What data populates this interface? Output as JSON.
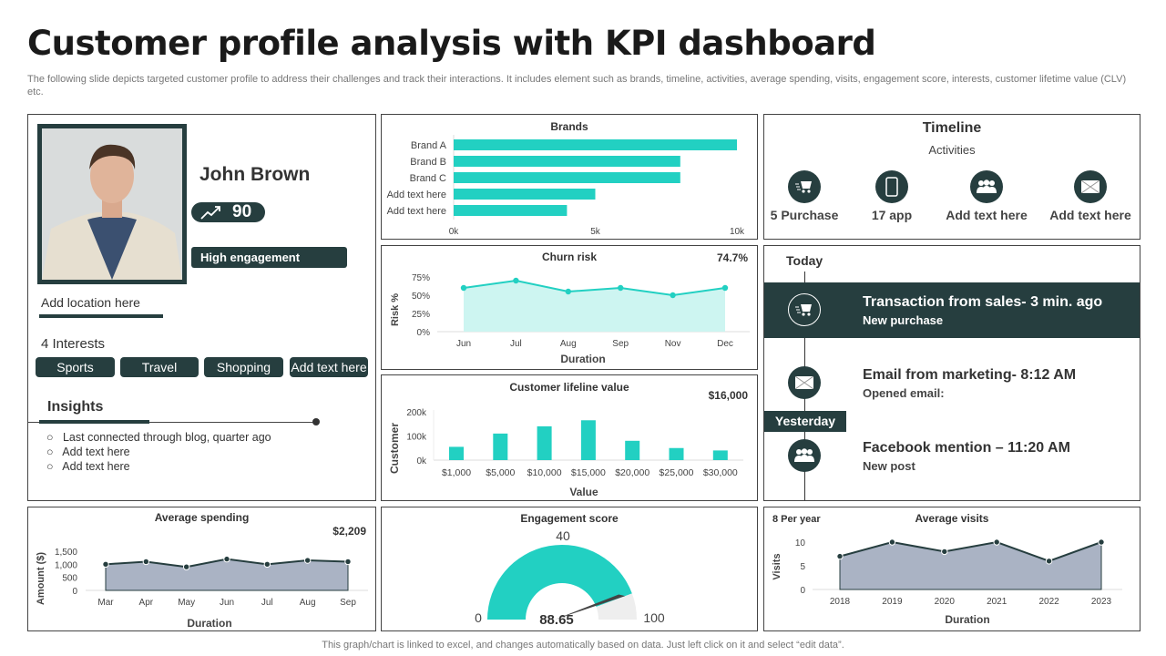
{
  "header": {
    "title": "Customer profile analysis with KPI dashboard",
    "description": "The following slide depicts targeted customer profile to address their challenges and track their interactions. It includes element such as brands, timeline, activities, average spending, visits, engagement score, interests, customer lifetime value (CLV) etc."
  },
  "profile": {
    "name": "John Brown",
    "score": "90",
    "engagement": "High engagement",
    "location": "Add location here",
    "interests_label": "4 Interests",
    "interests": [
      "Sports",
      "Travel",
      "Shopping",
      "Add text here"
    ],
    "insights_title": "Insights",
    "insights": [
      "Last connected through  blog,  quarter  ago",
      "Add text here",
      "Add text here"
    ]
  },
  "timeline": {
    "title": "Timeline",
    "subtitle": "Activities",
    "activities": [
      {
        "icon": "cart-icon",
        "label": "5 Purchase"
      },
      {
        "icon": "phone-icon",
        "label": "17 app"
      },
      {
        "icon": "group-icon",
        "label": "Add text here"
      },
      {
        "icon": "mail-icon",
        "label": "Add text here"
      }
    ]
  },
  "feed": {
    "today": "Today",
    "yesterday": "Yesterday",
    "items": [
      {
        "title": "Transaction from sales- 3 min. ago",
        "sub": "New purchase"
      },
      {
        "title": "Email from marketing- 8:12 AM",
        "sub": "Opened email:"
      },
      {
        "title": "Facebook mention – 11:20 AM",
        "sub": "New post"
      }
    ]
  },
  "colors": {
    "dark": "#263e3f",
    "teal": "#22d0c2",
    "area_gray": "#aab3c4",
    "churn_fill": "#cdf5f1"
  },
  "chart_data": [
    {
      "id": "brands",
      "type": "bar",
      "orientation": "horizontal",
      "title": "Brands",
      "categories": [
        "Brand A",
        "Brand B",
        "Brand C",
        "Add text here",
        "Add text here"
      ],
      "values": [
        10000,
        8000,
        8000,
        5000,
        4000
      ],
      "xlim": [
        0,
        10000
      ],
      "xticks": [
        "0k",
        "5k",
        "10k"
      ]
    },
    {
      "id": "churn",
      "type": "area",
      "title": "Churn risk",
      "kpi": "74.7%",
      "categories": [
        "Jun",
        "Jul",
        "Aug",
        "Sep",
        "Nov",
        "Dec"
      ],
      "values": [
        60,
        70,
        55,
        60,
        50,
        60
      ],
      "ylim": [
        0,
        75
      ],
      "yticks": [
        "0%",
        "25%",
        "50%",
        "75%"
      ],
      "xlabel": "Duration",
      "ylabel": "Risk %"
    },
    {
      "id": "clv",
      "type": "bar",
      "title": "Customer lifeline value",
      "kpi": "$16,000",
      "categories": [
        "$1,000",
        "$5,000",
        "$10,000",
        "$15,000",
        "$20,000",
        "$25,000",
        "$30,000"
      ],
      "values": [
        55000,
        110000,
        140000,
        165000,
        80000,
        50000,
        40000
      ],
      "ylim": [
        0,
        200000
      ],
      "yticks": [
        "0k",
        "100k",
        "200k"
      ],
      "xlabel": "Value",
      "ylabel": "Customer"
    },
    {
      "id": "spending",
      "type": "area",
      "title": "Average spending",
      "kpi": "$2,209",
      "categories": [
        "Mar",
        "Apr",
        "May",
        "Jun",
        "Jul",
        "Aug",
        "Sep"
      ],
      "values": [
        1000,
        1100,
        900,
        1200,
        1000,
        1150,
        1100
      ],
      "ylim": [
        0,
        1500
      ],
      "yticks": [
        "0",
        "500",
        "1,000",
        "1,500"
      ],
      "xlabel": "Duration",
      "ylabel": "Amount ($)"
    },
    {
      "id": "engagement",
      "type": "gauge",
      "title": "Engagement score",
      "value": 88.65,
      "value_label": "88.65",
      "min_label": "0",
      "max_label": "100",
      "top_label": "40",
      "range": [
        0,
        100
      ]
    },
    {
      "id": "visits",
      "type": "area",
      "title": "Average visits",
      "kpi": "8 Per year",
      "categories": [
        "2018",
        "2019",
        "2020",
        "2021",
        "2022",
        "2023"
      ],
      "values": [
        7,
        10,
        8,
        10,
        6,
        10
      ],
      "ylim": [
        0,
        10
      ],
      "yticks": [
        "0",
        "5",
        "10"
      ],
      "xlabel": "Duration",
      "ylabel": "Visits"
    }
  ],
  "footer": "This graph/chart is linked to excel,  and changes automatically based on data. Just left click on it and select “edit data”."
}
